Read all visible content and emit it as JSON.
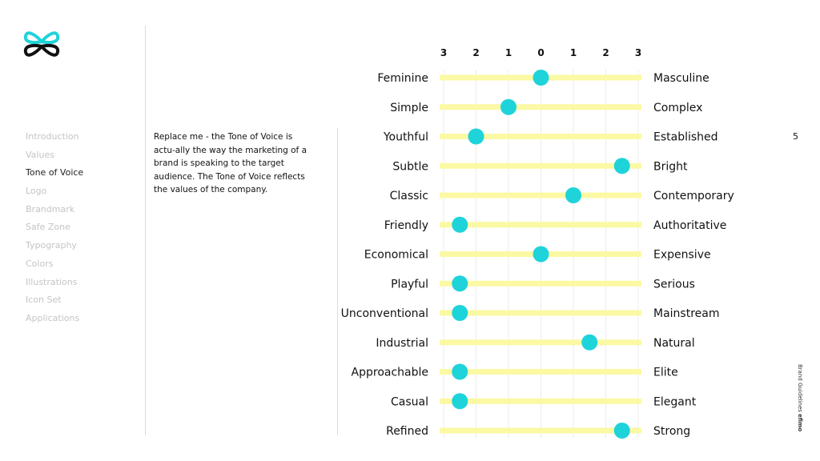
{
  "brand_colors": {
    "accent": "#1fd3da",
    "track": "#fbf9a3",
    "gridline": "#ececec",
    "logo_dark": "#111111"
  },
  "nav": {
    "items": [
      {
        "label": "Introduction",
        "active": false
      },
      {
        "label": "Values",
        "active": false
      },
      {
        "label": "Tone of Voice",
        "active": true
      },
      {
        "label": "Logo",
        "active": false
      },
      {
        "label": "Brandmark",
        "active": false
      },
      {
        "label": "Safe Zone",
        "active": false
      },
      {
        "label": "Typography",
        "active": false
      },
      {
        "label": "Colors",
        "active": false
      },
      {
        "label": "Illustrations",
        "active": false
      },
      {
        "label": "Icon Set",
        "active": false
      },
      {
        "label": "Applications",
        "active": false
      }
    ]
  },
  "description": "Replace me - the Tone of Voice is actu-ally the way the marketing of a brand is speaking to the target audience. The Tone of Voice reflects the values of the company.",
  "page_number": "5",
  "footer": {
    "label": "Brand Guidelines",
    "brand": "efimo"
  },
  "scale": {
    "tick_labels": [
      "3",
      "2",
      "1",
      "0",
      "1",
      "2",
      "3"
    ]
  },
  "chart_data": {
    "type": "scatter",
    "title": "",
    "x_axis": {
      "range": [
        -3,
        3
      ],
      "tick_labels": [
        "3",
        "2",
        "1",
        "0",
        "1",
        "2",
        "3"
      ]
    },
    "grid": true,
    "rows": [
      {
        "left": "Feminine",
        "right": "Masculine",
        "value": 0
      },
      {
        "left": "Simple",
        "right": "Complex",
        "value": -1
      },
      {
        "left": "Youthful",
        "right": "Established",
        "value": -2
      },
      {
        "left": "Subtle",
        "right": "Bright",
        "value": 2.5
      },
      {
        "left": "Classic",
        "right": "Contemporary",
        "value": 1
      },
      {
        "left": "Friendly",
        "right": "Authoritative",
        "value": -2.5
      },
      {
        "left": "Economical",
        "right": "Expensive",
        "value": 0
      },
      {
        "left": "Playful",
        "right": "Serious",
        "value": -2.5
      },
      {
        "left": "Unconventional",
        "right": "Mainstream",
        "value": -2.5
      },
      {
        "left": "Industrial",
        "right": "Natural",
        "value": 1.5
      },
      {
        "left": "Approachable",
        "right": "Elite",
        "value": -2.5
      },
      {
        "left": "Casual",
        "right": "Elegant",
        "value": -2.5
      },
      {
        "left": "Refined",
        "right": "Strong",
        "value": 2.5
      }
    ]
  }
}
